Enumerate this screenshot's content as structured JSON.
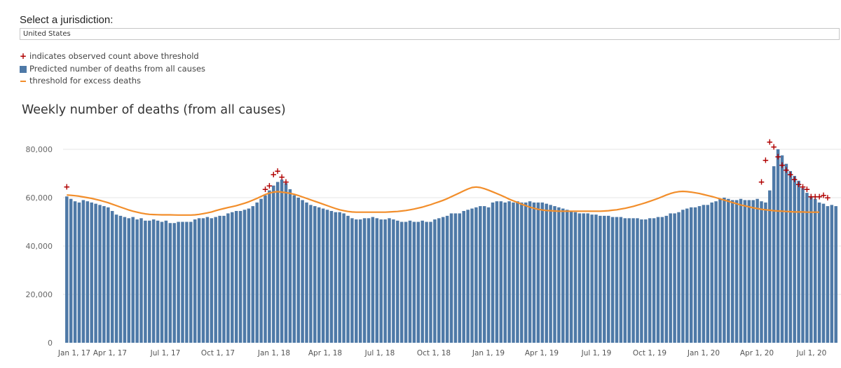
{
  "jurisdiction": {
    "prompt": "Select a jurisdiction:",
    "selected": "United States"
  },
  "legend": {
    "plus_icon": "+",
    "observed_label": "indicates observed count above threshold",
    "predicted_label": "Predicted number of deaths from all causes",
    "threshold_label": "threshold for excess deaths"
  },
  "colors": {
    "bar": "#4e79a7",
    "threshold": "#f28e2b",
    "marker": "#b00000",
    "grid": "#e6e6e6"
  },
  "chart_data": {
    "type": "bar",
    "title": "Weekly number of deaths (from all causes)",
    "xlabel": "",
    "ylabel": "",
    "ylim": [
      0,
      85000
    ],
    "y_ticks": [
      0,
      20000,
      40000,
      60000,
      80000
    ],
    "y_tick_labels": [
      "0",
      "20,000",
      "40,000",
      "60,000",
      "80,000"
    ],
    "x_tick_labels": [
      "Jan 1, 17",
      "Apr 1, 17",
      "Jul 1, 17",
      "Oct 1, 17",
      "Jan 1, 18",
      "Apr 1, 18",
      "Jul 1, 18",
      "Oct 1, 18",
      "Jan 1, 19",
      "Apr 1, 19",
      "Jul 1, 19",
      "Oct 1, 19",
      "Jan 1, 20",
      "Apr 1, 20",
      "Jul 1, 20"
    ],
    "x_tick_week_index": [
      0,
      13,
      26,
      39,
      52,
      65,
      78,
      91,
      104,
      117,
      130,
      143,
      156,
      169,
      182
    ],
    "series": [
      {
        "name": "Predicted number of deaths from all causes",
        "kind": "bar",
        "values": [
          60500,
          59500,
          58500,
          58000,
          59000,
          58500,
          58000,
          57500,
          57000,
          56500,
          56000,
          54500,
          53000,
          52500,
          52000,
          51500,
          52000,
          51000,
          51500,
          50500,
          50500,
          51000,
          50500,
          50000,
          50500,
          49500,
          49500,
          50000,
          50000,
          50000,
          50000,
          51000,
          51500,
          51500,
          52000,
          51500,
          52000,
          52500,
          52500,
          53500,
          54000,
          54500,
          54500,
          55000,
          55500,
          56500,
          58000,
          59500,
          61000,
          63000,
          65000,
          66500,
          67500,
          66000,
          63500,
          61000,
          60000,
          59000,
          58000,
          57000,
          56500,
          56000,
          55500,
          55000,
          54500,
          54000,
          54000,
          53500,
          52500,
          51500,
          51000,
          51000,
          51500,
          51500,
          52000,
          51500,
          51000,
          51000,
          51500,
          51000,
          50500,
          50000,
          50000,
          50500,
          50000,
          50000,
          50500,
          50000,
          50000,
          51000,
          51500,
          52000,
          52500,
          53500,
          53500,
          53500,
          54500,
          55000,
          55500,
          56000,
          56500,
          56500,
          56000,
          58000,
          58500,
          58500,
          58000,
          58500,
          58000,
          58500,
          58000,
          58000,
          58500,
          58000,
          58000,
          58000,
          57500,
          57000,
          56500,
          56000,
          55500,
          55000,
          54500,
          54000,
          53500,
          53500,
          53500,
          53000,
          53000,
          52500,
          52500,
          52500,
          52000,
          52000,
          52000,
          51500,
          51500,
          51500,
          51500,
          51000,
          51000,
          51500,
          51500,
          52000,
          52000,
          52500,
          53500,
          53500,
          54000,
          55000,
          55500,
          56000,
          56000,
          56500,
          57000,
          57000,
          58000,
          58500,
          59500,
          60000,
          59500,
          59000,
          59000,
          59500,
          59000,
          59000,
          59000,
          59500,
          58500,
          58000,
          63000,
          73000,
          80000,
          77500,
          74000,
          71000,
          69000,
          67000,
          64000,
          62000,
          60500,
          59500,
          58000,
          57500,
          56500,
          57000,
          56500
        ]
      },
      {
        "name": "threshold for excess deaths",
        "kind": "line",
        "values": [
          61100,
          61000,
          60800,
          60600,
          60300,
          60000,
          59700,
          59300,
          58900,
          58400,
          57900,
          57300,
          56700,
          56100,
          55500,
          54900,
          54400,
          54000,
          53600,
          53300,
          53100,
          53000,
          52950,
          52900,
          52900,
          52900,
          52850,
          52800,
          52800,
          52800,
          52800,
          52900,
          53100,
          53400,
          53700,
          54100,
          54600,
          55100,
          55500,
          55900,
          56300,
          56700,
          57200,
          57700,
          58300,
          59000,
          59700,
          60500,
          61300,
          61900,
          62300,
          62500,
          62300,
          62100,
          61800,
          61400,
          60900,
          60300,
          59700,
          59100,
          58500,
          57900,
          57300,
          56700,
          56100,
          55500,
          55000,
          54600,
          54300,
          54100,
          54000,
          54000,
          54000,
          54000,
          54000,
          54000,
          54000,
          54000,
          54100,
          54200,
          54300,
          54500,
          54700,
          55000,
          55300,
          55700,
          56100,
          56600,
          57100,
          57700,
          58300,
          58900,
          59600,
          60400,
          61200,
          62000,
          62800,
          63600,
          64200,
          64400,
          64200,
          63700,
          63100,
          62400,
          61700,
          61000,
          60200,
          59400,
          58700,
          58000,
          57300,
          56700,
          56100,
          55600,
          55200,
          54900,
          54700,
          54600,
          54500,
          54400,
          54400,
          54400,
          54400,
          54400,
          54400,
          54400,
          54400,
          54400,
          54400,
          54400,
          54500,
          54600,
          54800,
          55000,
          55300,
          55600,
          56000,
          56400,
          56900,
          57400,
          57900,
          58500,
          59100,
          59700,
          60400,
          61100,
          61700,
          62200,
          62500,
          62600,
          62500,
          62300,
          62000,
          61700,
          61300,
          60900,
          60500,
          60000,
          59500,
          59000,
          58500,
          58000,
          57500,
          57000,
          56600,
          56200,
          55800,
          55500,
          55200,
          55000,
          54800,
          54600,
          54500,
          54400,
          54300,
          54200,
          54100,
          54100,
          54100,
          54000,
          54000,
          54000,
          54000
        ]
      },
      {
        "name": "indicates observed count above threshold",
        "kind": "marker",
        "points": [
          {
            "week": 0,
            "value": 64500
          },
          {
            "week": 48,
            "value": 63500
          },
          {
            "week": 49,
            "value": 65000
          },
          {
            "week": 50,
            "value": 69500
          },
          {
            "week": 51,
            "value": 71000
          },
          {
            "week": 52,
            "value": 68500
          },
          {
            "week": 53,
            "value": 66500
          },
          {
            "week": 168,
            "value": 66500
          },
          {
            "week": 169,
            "value": 75500
          },
          {
            "week": 170,
            "value": 83000
          },
          {
            "week": 171,
            "value": 81000
          },
          {
            "week": 172,
            "value": 77000
          },
          {
            "week": 173,
            "value": 73500
          },
          {
            "week": 174,
            "value": 71500
          },
          {
            "week": 175,
            "value": 69500
          },
          {
            "week": 176,
            "value": 67500
          },
          {
            "week": 177,
            "value": 65500
          },
          {
            "week": 178,
            "value": 64500
          },
          {
            "week": 179,
            "value": 63500
          },
          {
            "week": 180,
            "value": 60500
          },
          {
            "week": 181,
            "value": 60500
          },
          {
            "week": 182,
            "value": 60500
          },
          {
            "week": 183,
            "value": 61000
          },
          {
            "week": 184,
            "value": 60000
          }
        ]
      }
    ]
  }
}
